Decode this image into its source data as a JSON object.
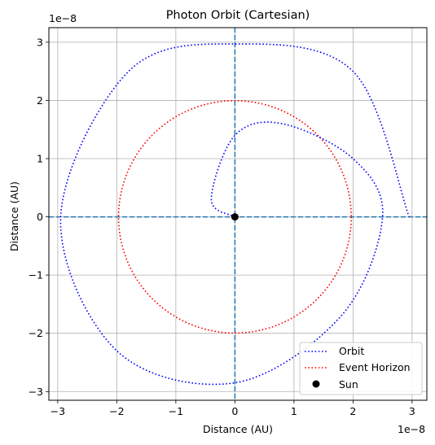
{
  "chart_data": {
    "type": "line",
    "title": "Photon Orbit (Cartesian)",
    "xlabel": "Distance (AU)",
    "ylabel": "Distance (AU)",
    "x_offset_text": "1e−8",
    "y_offset_text": "1e−8",
    "xlim": [
      -3.15,
      3.25
    ],
    "ylim": [
      -3.15,
      3.25
    ],
    "x_ticks": [
      -3,
      -2,
      -1,
      0,
      1,
      2,
      3
    ],
    "y_ticks": [
      -3,
      -2,
      -1,
      0,
      1,
      2,
      3
    ],
    "x_tick_labels": [
      "−3",
      "−2",
      "−1",
      "0",
      "1",
      "2",
      "3"
    ],
    "y_tick_labels": [
      "−3",
      "−2",
      "−1",
      "0",
      "1",
      "2",
      "3"
    ],
    "grid": true,
    "legend_position": "lower-right",
    "reference_lines": {
      "x": 0,
      "y": 0,
      "style": "dashed",
      "color": "#1f77b4"
    },
    "series": [
      {
        "name": "Orbit",
        "style": "dotted",
        "color": "#0000ff",
        "description_points": [
          [
            0,
            0
          ],
          [
            -0.4,
            0.3
          ],
          [
            0,
            1.4
          ],
          [
            0.8,
            1.6
          ],
          [
            2.0,
            1.0
          ],
          [
            2.5,
            0.0
          ],
          [
            1.8,
            -1.7
          ],
          [
            0,
            -2.85
          ],
          [
            -2.0,
            -2.3
          ],
          [
            -2.95,
            0
          ],
          [
            -1.8,
            2.5
          ],
          [
            0,
            2.97
          ],
          [
            2.0,
            2.5
          ],
          [
            2.95,
            0
          ]
        ]
      },
      {
        "name": "Event Horizon",
        "style": "dotted",
        "color": "#ff0000",
        "radius": 1.97
      },
      {
        "name": "Sun",
        "style": "marker",
        "color": "#000000",
        "x": 0,
        "y": 0
      }
    ]
  }
}
